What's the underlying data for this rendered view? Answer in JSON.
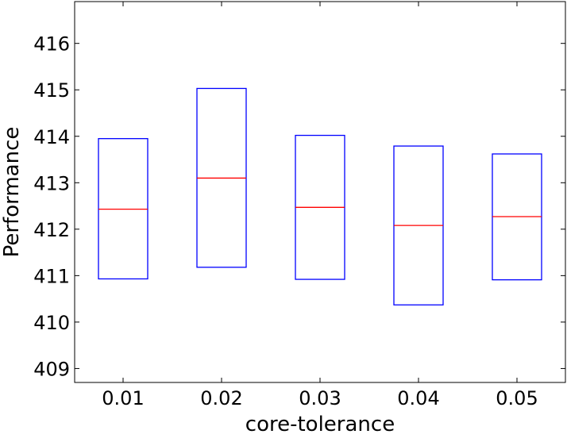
{
  "chart_data": {
    "type": "box",
    "xlabel": "core-tolerance",
    "ylabel": "Performance",
    "ylim": [
      408.7,
      416.9
    ],
    "yticks": [
      409,
      410,
      411,
      412,
      413,
      414,
      415,
      416
    ],
    "ytick_labels": [
      "409",
      "410",
      "411",
      "412",
      "413",
      "414",
      "415",
      "416"
    ],
    "categories": [
      "0.01",
      "0.02",
      "0.03",
      "0.04",
      "0.05"
    ],
    "boxes": [
      {
        "category": "0.01",
        "q1": 410.93,
        "median": 412.43,
        "q3": 413.95
      },
      {
        "category": "0.02",
        "q1": 411.18,
        "median": 413.1,
        "q3": 415.03
      },
      {
        "category": "0.03",
        "q1": 410.92,
        "median": 412.47,
        "q3": 414.02
      },
      {
        "category": "0.04",
        "q1": 410.37,
        "median": 412.08,
        "q3": 413.79
      },
      {
        "category": "0.05",
        "q1": 410.91,
        "median": 412.27,
        "q3": 413.62
      }
    ],
    "box_color": "#0000ff",
    "median_color": "#ff0000",
    "grid": false,
    "legend": "none"
  }
}
